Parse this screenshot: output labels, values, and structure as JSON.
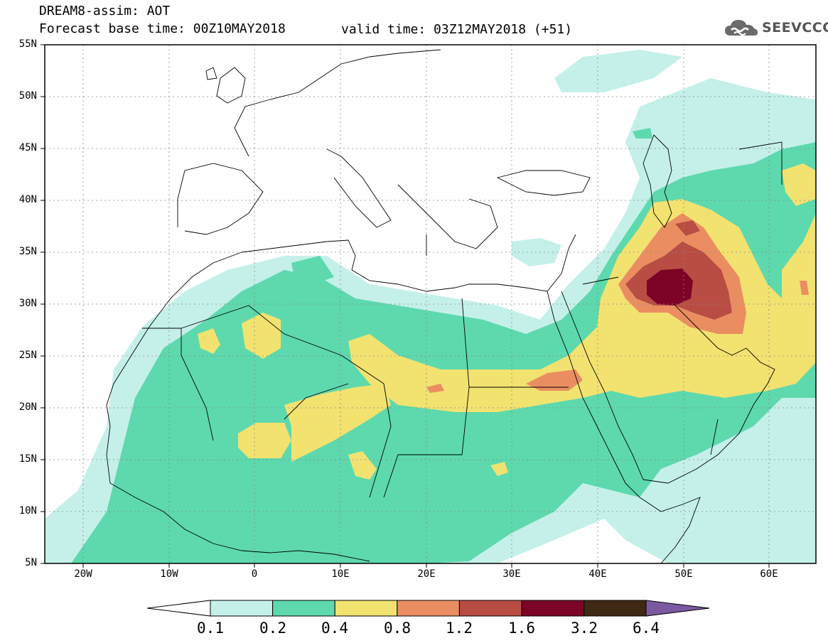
{
  "header": {
    "title_line1": "DREAM8-assim: AOT",
    "title_line2": "Forecast base time: 00Z10MAY2018",
    "valid_time": "valid time: 03Z12MAY2018 (+51)",
    "logo_text": "SEEVCCC"
  },
  "map": {
    "lon_range": [
      -25,
      65
    ],
    "lat_range": [
      5,
      55
    ],
    "lat_labels": [
      "55N",
      "50N",
      "45N",
      "40N",
      "35N",
      "30N",
      "25N",
      "20N",
      "15N",
      "10N",
      "5N"
    ],
    "lon_labels": [
      "20W",
      "10W",
      "0",
      "10E",
      "20E",
      "30E",
      "40E",
      "50E",
      "60E"
    ],
    "gridlines": true
  },
  "colorbar": {
    "labels": [
      "0.1",
      "0.2",
      "0.4",
      "0.8",
      "1.2",
      "1.6",
      "3.2",
      "6.4"
    ],
    "colors": [
      "#ffffff",
      "#c5f0ea",
      "#5dd9ad",
      "#f2e270",
      "#ea8e61",
      "#b94d44",
      "#7d0426",
      "#3f2814",
      "#7b59a1"
    ]
  }
}
